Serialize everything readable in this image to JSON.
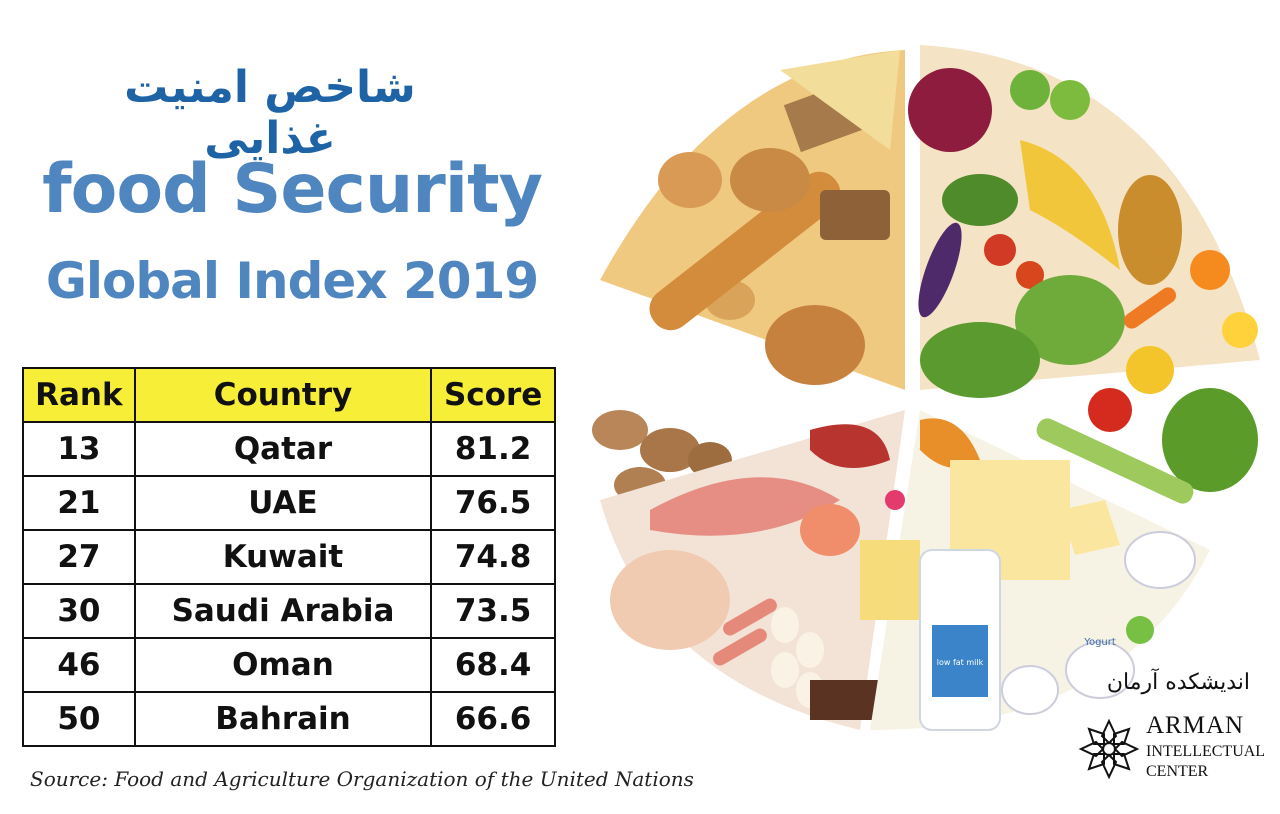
{
  "title_fa": "شاخص امنیت غذایی",
  "title_en_line1": "food Security",
  "title_en_line2": "Global Index 2019",
  "table": {
    "headers": [
      "Rank",
      "Country",
      "Score"
    ],
    "rows": [
      [
        "13",
        "Qatar",
        "81.2"
      ],
      [
        "21",
        "UAE",
        "76.5"
      ],
      [
        "27",
        "Kuwait",
        "74.8"
      ],
      [
        "30",
        "Saudi Arabia",
        "73.5"
      ],
      [
        "46",
        "Oman",
        "68.4"
      ],
      [
        "50",
        "Bahrain",
        "66.6"
      ]
    ]
  },
  "source": "Source: Food and Agriculture Organization of the United Nations",
  "illustration": {
    "labels": {
      "yogurt": "Yogurt",
      "milk": "low fat milk"
    }
  },
  "logo": {
    "name_fa": "اندیشکده آرمان",
    "name_en": "ARMAN",
    "sub1": "INTELLECTUAL",
    "sub2": "CENTER"
  },
  "colors": {
    "title_fa": "#1e63a6",
    "title_en": "#4f86bf",
    "header_bg": "#f6ee37"
  }
}
